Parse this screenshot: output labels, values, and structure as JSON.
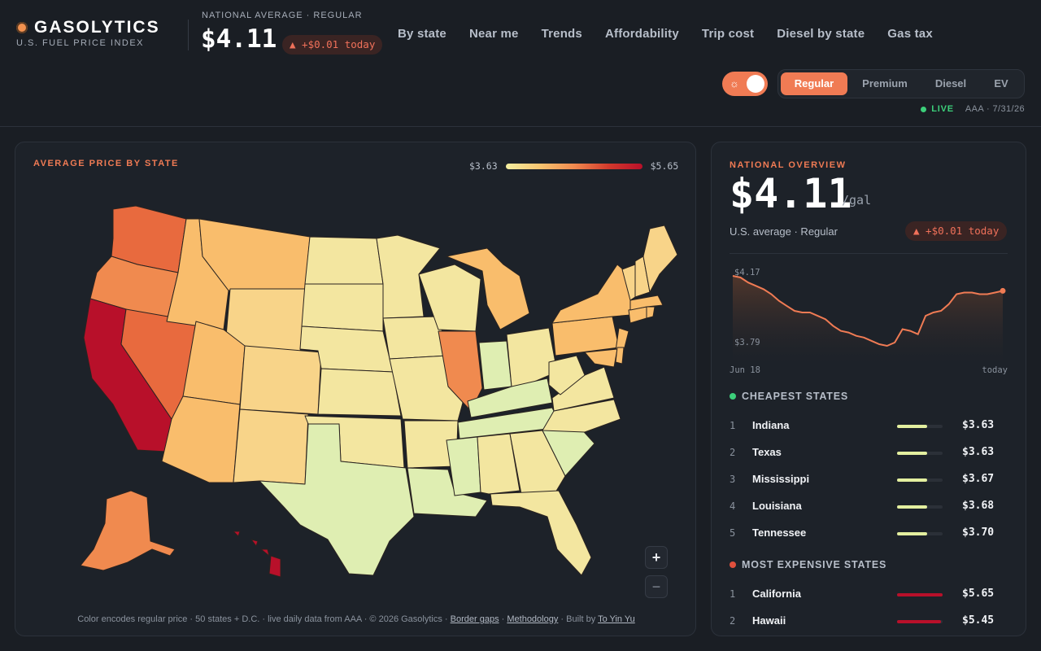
{
  "header": {
    "brand_name": "GASOLYTICS",
    "brand_sub": "U.S. FUEL PRICE INDEX",
    "national_label": "NATIONAL AVERAGE · REGULAR",
    "national_price": "$4.11",
    "delta": "▲ +$0.01 today",
    "nav": [
      "By state",
      "Near me",
      "Trends",
      "Affordability",
      "Trip cost",
      "Diesel by state",
      "Gas tax"
    ],
    "fuel_types": [
      "Regular",
      "Premium",
      "Diesel",
      "EV"
    ],
    "active_fuel": "Regular",
    "theme_icon": "sun-icon",
    "live": "LIVE",
    "source": "AAA · 7/31/26"
  },
  "map": {
    "title": "AVERAGE PRICE BY STATE",
    "legend_min": "$3.63",
    "legend_max": "$5.65",
    "zoom_in": "+",
    "zoom_out": "−",
    "footer_text": "Color encodes regular price · 50 states + D.C. · live daily data from AAA · © 2026 Gasolytics · ",
    "footer_links": [
      "Border gaps",
      "Methodology"
    ],
    "footer_built": " · Built by ",
    "footer_author": "To Yin Yu",
    "colors": {
      "cheap": "#dfeeb2",
      "low": "#f3e6a0",
      "mid": "#f8d489",
      "midhigh": "#f9bd6c",
      "high": "#f08a4f",
      "higher": "#e86a3e",
      "top": "#b8102a"
    }
  },
  "overview": {
    "title": "NATIONAL OVERVIEW",
    "price": "$4.11",
    "unit": "/gal",
    "sub": "U.S. average · Regular",
    "delta": "▲ +$0.01 today",
    "spark_high": "$4.17",
    "spark_low": "$3.79",
    "spark_start": "Jun 18",
    "spark_end": "today",
    "trend": [
      4.17,
      4.16,
      4.13,
      4.11,
      4.09,
      4.06,
      4.02,
      3.99,
      3.96,
      3.95,
      3.95,
      3.93,
      3.91,
      3.87,
      3.84,
      3.83,
      3.81,
      3.8,
      3.78,
      3.76,
      3.75,
      3.77,
      3.85,
      3.84,
      3.82,
      3.93,
      3.95,
      3.96,
      4.0,
      4.06,
      4.07,
      4.07,
      4.06,
      4.06,
      4.07,
      4.08
    ]
  },
  "cheapest": {
    "title": "CHEAPEST STATES",
    "dot_color": "#3ccf7a",
    "bar_color": "#e3ef9f",
    "rows": [
      {
        "rank": "1",
        "state": "Indiana",
        "price": "$3.63",
        "level": 0.66
      },
      {
        "rank": "2",
        "state": "Texas",
        "price": "$3.63",
        "level": 0.66
      },
      {
        "rank": "3",
        "state": "Mississippi",
        "price": "$3.67",
        "level": 0.66
      },
      {
        "rank": "4",
        "state": "Louisiana",
        "price": "$3.68",
        "level": 0.66
      },
      {
        "rank": "5",
        "state": "Tennessee",
        "price": "$3.70",
        "level": 0.66
      }
    ]
  },
  "expensive": {
    "title": "MOST EXPENSIVE STATES",
    "dot_color": "#e0503d",
    "bar_color": "#b8102a",
    "rows": [
      {
        "rank": "1",
        "state": "California",
        "price": "$5.65",
        "level": 1.0
      },
      {
        "rank": "2",
        "state": "Hawaii",
        "price": "$5.45",
        "level": 0.97
      }
    ]
  }
}
